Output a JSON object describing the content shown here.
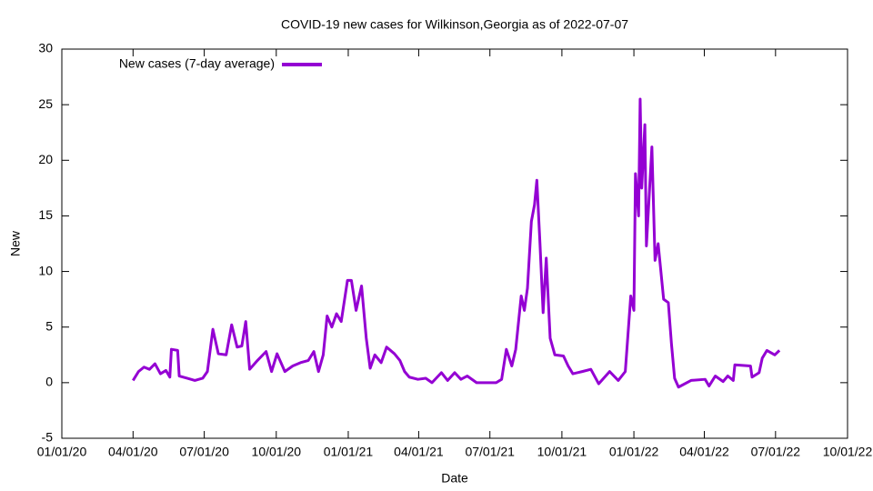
{
  "chart_data": {
    "type": "line",
    "title": "COVID-19 new cases for Wilkinson,Georgia as of 2022-07-07",
    "xlabel": "Date",
    "ylabel": "New",
    "xlim": [
      "2020-01-01",
      "2022-10-01"
    ],
    "xticks": [
      {
        "value": "2020-01-01",
        "label": "01/01/20"
      },
      {
        "value": "2020-04-01",
        "label": "04/01/20"
      },
      {
        "value": "2020-07-01",
        "label": "07/01/20"
      },
      {
        "value": "2020-10-01",
        "label": "10/01/20"
      },
      {
        "value": "2021-01-01",
        "label": "01/01/21"
      },
      {
        "value": "2021-04-01",
        "label": "04/01/21"
      },
      {
        "value": "2021-07-01",
        "label": "07/01/21"
      },
      {
        "value": "2021-10-01",
        "label": "10/01/21"
      },
      {
        "value": "2022-01-01",
        "label": "01/01/22"
      },
      {
        "value": "2022-04-01",
        "label": "04/01/22"
      },
      {
        "value": "2022-07-01",
        "label": "07/01/22"
      },
      {
        "value": "2022-10-01",
        "label": "10/01/22"
      }
    ],
    "ylim": [
      -5,
      30
    ],
    "yticks": [
      -5,
      0,
      5,
      10,
      15,
      20,
      25,
      30
    ],
    "legend": "top-left",
    "x": [
      "2020-04-01",
      "2020-04-08",
      "2020-04-15",
      "2020-04-22",
      "2020-04-29",
      "2020-05-06",
      "2020-05-13",
      "2020-05-18",
      "2020-05-20",
      "2020-05-28",
      "2020-05-30",
      "2020-06-09",
      "2020-06-19",
      "2020-06-29",
      "2020-07-05",
      "2020-07-12",
      "2020-07-19",
      "2020-07-29",
      "2020-08-05",
      "2020-08-12",
      "2020-08-18",
      "2020-08-23",
      "2020-08-28",
      "2020-09-07",
      "2020-09-18",
      "2020-09-25",
      "2020-10-02",
      "2020-10-12",
      "2020-10-22",
      "2020-11-01",
      "2020-11-11",
      "2020-11-18",
      "2020-11-24",
      "2020-11-30",
      "2020-12-05",
      "2020-12-11",
      "2020-12-17",
      "2020-12-23",
      "2020-12-31",
      "2021-01-05",
      "2021-01-11",
      "2021-01-18",
      "2021-01-24",
      "2021-01-29",
      "2021-02-04",
      "2021-02-12",
      "2021-02-19",
      "2021-03-01",
      "2021-03-08",
      "2021-03-14",
      "2021-03-20",
      "2021-03-31",
      "2021-04-10",
      "2021-04-18",
      "2021-04-30",
      "2021-05-08",
      "2021-05-17",
      "2021-05-25",
      "2021-06-02",
      "2021-06-14",
      "2021-06-27",
      "2021-07-09",
      "2021-07-16",
      "2021-07-22",
      "2021-07-29",
      "2021-08-03",
      "2021-08-10",
      "2021-08-14",
      "2021-08-18",
      "2021-08-23",
      "2021-08-27",
      "2021-08-30",
      "2021-09-03",
      "2021-09-07",
      "2021-09-11",
      "2021-09-16",
      "2021-09-22",
      "2021-10-03",
      "2021-10-09",
      "2021-10-15",
      "2021-10-27",
      "2021-11-07",
      "2021-11-17",
      "2021-12-01",
      "2021-12-12",
      "2021-12-21",
      "2021-12-28",
      "2022-01-01",
      "2022-01-03",
      "2022-01-07",
      "2022-01-09",
      "2022-01-11",
      "2022-01-15",
      "2022-01-17",
      "2022-01-24",
      "2022-01-28",
      "2022-02-01",
      "2022-02-08",
      "2022-02-14",
      "2022-02-18",
      "2022-02-22",
      "2022-02-27",
      "2022-03-15",
      "2022-04-02",
      "2022-04-07",
      "2022-04-15",
      "2022-04-25",
      "2022-05-01",
      "2022-05-08",
      "2022-05-10",
      "2022-05-30",
      "2022-06-01",
      "2022-06-10",
      "2022-06-14",
      "2022-06-20",
      "2022-06-30",
      "2022-07-06"
    ],
    "series": [
      {
        "name": "New cases (7-day average)",
        "color": "#9400d3",
        "values": [
          0.2,
          1.0,
          1.4,
          1.2,
          1.7,
          0.8,
          1.1,
          0.5,
          3.0,
          2.9,
          0.6,
          0.4,
          0.2,
          0.4,
          1.0,
          4.8,
          2.6,
          2.5,
          5.2,
          3.2,
          3.3,
          5.5,
          1.2,
          2.0,
          2.8,
          1.0,
          2.6,
          1.0,
          1.5,
          1.8,
          2.0,
          2.8,
          1.0,
          2.5,
          6.0,
          5.0,
          6.2,
          5.5,
          9.2,
          9.2,
          6.5,
          8.7,
          4.0,
          1.3,
          2.5,
          1.8,
          3.2,
          2.6,
          2.0,
          1.0,
          0.5,
          0.3,
          0.4,
          0.0,
          0.9,
          0.2,
          0.9,
          0.3,
          0.6,
          0.0,
          0.0,
          0.0,
          0.3,
          3.0,
          1.5,
          3.0,
          7.8,
          6.5,
          8.5,
          14.5,
          16.0,
          18.2,
          12.5,
          6.3,
          11.2,
          4.0,
          2.5,
          2.4,
          1.5,
          0.8,
          1.0,
          1.2,
          -0.1,
          1.0,
          0.2,
          1.0,
          7.8,
          6.5,
          18.8,
          15.0,
          25.5,
          17.5,
          23.2,
          12.3,
          21.2,
          11.0,
          12.5,
          7.5,
          7.2,
          3.5,
          0.4,
          -0.4,
          0.2,
          0.3,
          -0.3,
          0.6,
          0.1,
          0.6,
          0.2,
          1.6,
          1.5,
          0.5,
          0.9,
          2.2,
          2.9,
          2.5,
          2.9
        ]
      }
    ]
  }
}
